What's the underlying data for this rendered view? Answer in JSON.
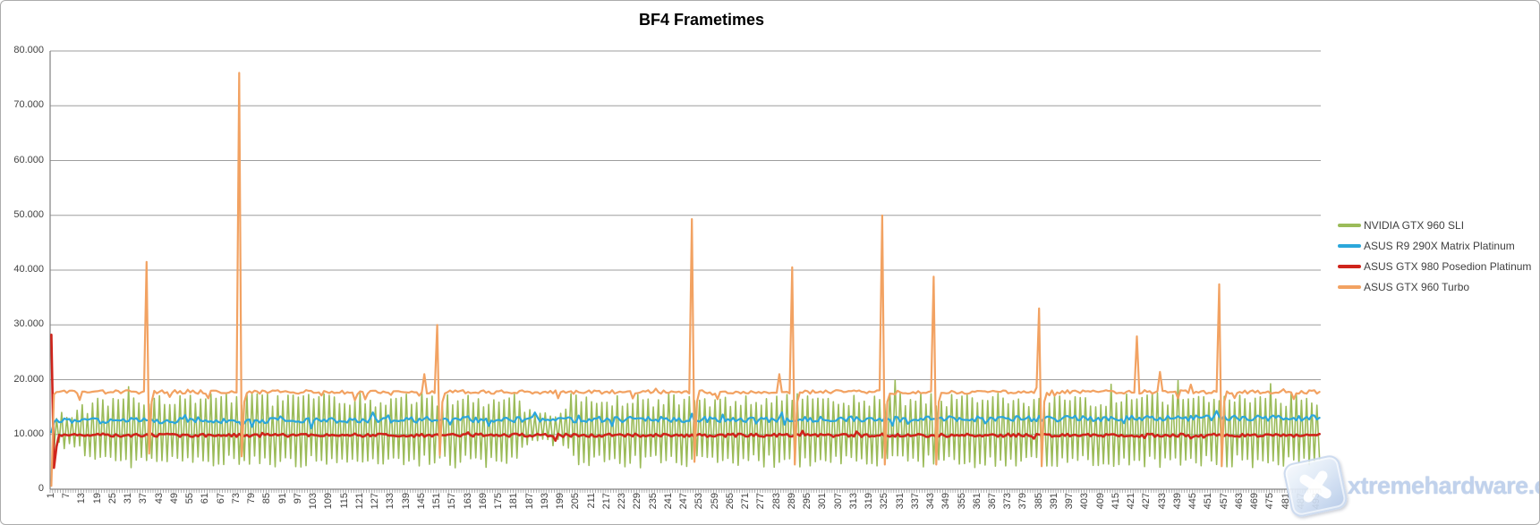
{
  "colors": {
    "background": "#FFFFFF",
    "border": "#ABABAB",
    "grid": "#9E9E9E",
    "axis": "#808080",
    "text": "#404040",
    "title": "#000000",
    "watermark_text": "#BCCFEB"
  },
  "watermark": {
    "text": "xtremehardware.com",
    "icon": "x-logo"
  },
  "chart_data": {
    "type": "line",
    "title": "BF4 Frametimes",
    "legend_position": "right",
    "grid": "horizontal",
    "x": {
      "count": 494,
      "first": 1,
      "step_between_labels": 6,
      "tick_labels": [
        "1",
        "7",
        "13",
        "19",
        "25",
        "31",
        "37",
        "43",
        "49",
        "55",
        "61",
        "67",
        "73",
        "79",
        "85",
        "91",
        "97",
        "103",
        "109",
        "115",
        "121",
        "127",
        "133",
        "139",
        "145",
        "151",
        "157",
        "163",
        "169",
        "175",
        "181",
        "187",
        "193",
        "199",
        "205",
        "211",
        "217",
        "223",
        "229",
        "235",
        "241",
        "247",
        "253",
        "259",
        "265",
        "271",
        "277",
        "283",
        "289",
        "295",
        "301",
        "307",
        "313",
        "319",
        "325",
        "331",
        "337",
        "343",
        "349",
        "355",
        "361",
        "367",
        "373",
        "379",
        "385",
        "391",
        "397",
        "403",
        "409",
        "415",
        "421",
        "427",
        "433",
        "439",
        "445",
        "451",
        "457",
        "463",
        "469",
        "475",
        "481",
        "487",
        "493"
      ]
    },
    "y": {
      "min": 0,
      "max": 80000,
      "tick_interval": 10000,
      "tick_labels": [
        "0",
        "10.000",
        "20.000",
        "30.000",
        "40.000",
        "50.000",
        "60.000",
        "70.000",
        "80.000"
      ]
    },
    "series": [
      {
        "name": "NVIDIA GTX 960 SLI",
        "color": "#9BBB59",
        "line_width": 1.6,
        "seed": 7,
        "pattern": {
          "kind": "alternating",
          "hi": 16300,
          "lo": 5100,
          "hi_jitter": 1300,
          "lo_jitter": 1200,
          "start": [
            25500,
            6800
          ],
          "ramp": {
            "from": 3,
            "to": 24,
            "center": 10600,
            "amp_start": 2400,
            "amp_end": 5700
          },
          "calm": {
            "from": 184,
            "to": 202,
            "hi": 13900,
            "lo": 8300,
            "jitter": 900
          },
          "spike_chance": 0.03,
          "spike_boost": 2900
        }
      },
      {
        "name": "ASUS R9 290X Matrix Platinum",
        "color": "#2BA7DB",
        "line_width": 2.2,
        "seed": 5,
        "pattern": {
          "kind": "noisy",
          "base": 12500,
          "jitter": 520,
          "drift": 500,
          "bump_chance": 0.09,
          "bump_size": 1300,
          "start": [
            10400,
            12200
          ]
        }
      },
      {
        "name": "ASUS GTX 980 Posedion Platinum",
        "color": "#CF241B",
        "line_width": 2.6,
        "seed": 9,
        "pattern": {
          "kind": "noisy",
          "base": 9850,
          "jitter": 300,
          "drift": 0,
          "bump_chance": 0.06,
          "bump_size": 750,
          "start": [
            28200,
            3900,
            7800
          ]
        }
      },
      {
        "name": "ASUS GTX 960 Turbo",
        "color": "#F2A262",
        "line_width": 2.2,
        "seed": 3,
        "pattern": {
          "kind": "noisy",
          "base": 17750,
          "jitter": 340,
          "drift": 0,
          "bump_chance": 0.06,
          "bump_size": 1300,
          "start": [
            600,
            17300
          ]
        },
        "spikes": [
          {
            "frame": 38,
            "peak": 41500,
            "dip": 6500
          },
          {
            "frame": 74,
            "peak": 76000,
            "dip": 6000
          },
          {
            "frame": 146,
            "peak": 21000
          },
          {
            "frame": 151,
            "peak": 30000,
            "dip": 6200
          },
          {
            "frame": 250,
            "peak": 49300,
            "dip": 5000
          },
          {
            "frame": 284,
            "peak": 21000
          },
          {
            "frame": 289,
            "peak": 40500,
            "dip": 4500
          },
          {
            "frame": 324,
            "peak": 50000,
            "dip": 4500
          },
          {
            "frame": 344,
            "peak": 38800,
            "dip": 4500
          },
          {
            "frame": 385,
            "peak": 33000,
            "dip": 4200
          },
          {
            "frame": 423,
            "peak": 27900
          },
          {
            "frame": 432,
            "peak": 21400
          },
          {
            "frame": 455,
            "peak": 37400,
            "dip": 4200
          }
        ]
      }
    ]
  }
}
